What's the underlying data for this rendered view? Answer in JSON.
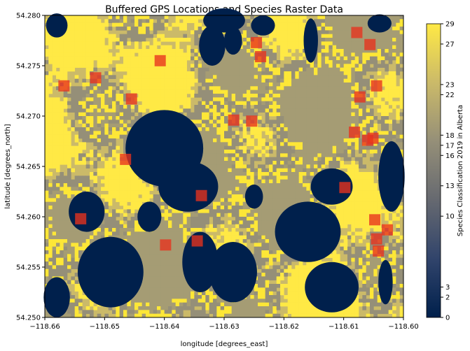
{
  "chart_data": {
    "type": "heatmap",
    "title": "Buffered GPS Locations and Species Raster Data",
    "xlabel": "longitude [degrees_east]",
    "ylabel": "latitude [degrees_north]",
    "xlim": [
      -118.66,
      -118.6
    ],
    "ylim": [
      54.25,
      54.28
    ],
    "x_ticks": [
      -118.66,
      -118.65,
      -118.64,
      -118.63,
      -118.62,
      -118.61,
      -118.6
    ],
    "x_tick_labels": [
      "−118.66",
      "−118.65",
      "−118.64",
      "−118.63",
      "−118.62",
      "−118.61",
      "−118.60"
    ],
    "y_ticks": [
      54.25,
      54.255,
      54.26,
      54.265,
      54.27,
      54.275,
      54.28
    ],
    "y_tick_labels": [
      "54.250",
      "54.255",
      "54.260",
      "54.265",
      "54.270",
      "54.275",
      "54.280"
    ],
    "colorbar": {
      "label": "Species Classification 2019 in Alberta",
      "range": [
        0,
        29
      ],
      "ticks": [
        0,
        2,
        3,
        10,
        13,
        16,
        17,
        18,
        22,
        23,
        27,
        29
      ],
      "colormap": "cividis",
      "colors": [
        "#00204c",
        "#31446b",
        "#666970",
        "#958f78",
        "#cbba69",
        "#ffe945"
      ]
    },
    "gps_buffer_color": "#e8321e",
    "gps_points": [
      {
        "lon": -118.6568,
        "lat": 54.273
      },
      {
        "lon": -118.6515,
        "lat": 54.2738
      },
      {
        "lon": -118.6455,
        "lat": 54.2717
      },
      {
        "lon": -118.6465,
        "lat": 54.2657
      },
      {
        "lon": -118.6407,
        "lat": 54.2755
      },
      {
        "lon": -118.654,
        "lat": 54.2598
      },
      {
        "lon": -118.6398,
        "lat": 54.2572
      },
      {
        "lon": -118.6345,
        "lat": 54.2576
      },
      {
        "lon": -118.6338,
        "lat": 54.2621
      },
      {
        "lon": -118.6284,
        "lat": 54.2696
      },
      {
        "lon": -118.6254,
        "lat": 54.2695
      },
      {
        "lon": -118.6246,
        "lat": 54.2773
      },
      {
        "lon": -118.6239,
        "lat": 54.2759
      },
      {
        "lon": -118.6098,
        "lat": 54.2629
      },
      {
        "lon": -118.6082,
        "lat": 54.2684
      },
      {
        "lon": -118.6078,
        "lat": 54.2783
      },
      {
        "lon": -118.6073,
        "lat": 54.2719
      },
      {
        "lon": -118.6056,
        "lat": 54.2771
      },
      {
        "lon": -118.606,
        "lat": 54.2676
      },
      {
        "lon": -118.6051,
        "lat": 54.2678
      },
      {
        "lon": -118.6045,
        "lat": 54.273
      },
      {
        "lon": -118.6048,
        "lat": 54.2597
      },
      {
        "lon": -118.6045,
        "lat": 54.2578
      },
      {
        "lon": -118.6042,
        "lat": 54.2566
      },
      {
        "lon": -118.6027,
        "lat": 54.2587
      }
    ],
    "water_patches": [
      {
        "cx": -118.63,
        "cy": 54.2795,
        "rx": 0.0035,
        "ry": 0.0012
      },
      {
        "cx": -118.6235,
        "cy": 54.279,
        "rx": 0.002,
        "ry": 0.001
      },
      {
        "cx": -118.604,
        "cy": 54.2792,
        "rx": 0.002,
        "ry": 0.0009
      },
      {
        "cx": -118.632,
        "cy": 54.277,
        "rx": 0.0022,
        "ry": 0.002
      },
      {
        "cx": -118.6285,
        "cy": 54.2775,
        "rx": 0.0015,
        "ry": 0.0014
      },
      {
        "cx": -118.64,
        "cy": 54.2668,
        "rx": 0.0065,
        "ry": 0.0038
      },
      {
        "cx": -118.636,
        "cy": 54.263,
        "rx": 0.005,
        "ry": 0.0025
      },
      {
        "cx": -118.625,
        "cy": 54.262,
        "rx": 0.0015,
        "ry": 0.0012
      },
      {
        "cx": -118.634,
        "cy": 54.2555,
        "rx": 0.003,
        "ry": 0.003
      },
      {
        "cx": -118.6285,
        "cy": 54.2545,
        "rx": 0.004,
        "ry": 0.003
      },
      {
        "cx": -118.6425,
        "cy": 54.26,
        "rx": 0.002,
        "ry": 0.0015
      },
      {
        "cx": -118.649,
        "cy": 54.2545,
        "rx": 0.0055,
        "ry": 0.0035
      },
      {
        "cx": -118.653,
        "cy": 54.2605,
        "rx": 0.003,
        "ry": 0.002
      },
      {
        "cx": -118.658,
        "cy": 54.252,
        "rx": 0.0022,
        "ry": 0.002
      },
      {
        "cx": -118.658,
        "cy": 54.279,
        "rx": 0.0018,
        "ry": 0.0012
      },
      {
        "cx": -118.616,
        "cy": 54.2585,
        "rx": 0.0055,
        "ry": 0.003
      },
      {
        "cx": -118.612,
        "cy": 54.263,
        "rx": 0.0035,
        "ry": 0.0018
      },
      {
        "cx": -118.612,
        "cy": 54.253,
        "rx": 0.0045,
        "ry": 0.0025
      },
      {
        "cx": -118.602,
        "cy": 54.264,
        "rx": 0.0022,
        "ry": 0.0035
      },
      {
        "cx": -118.603,
        "cy": 54.2535,
        "rx": 0.0012,
        "ry": 0.0022
      },
      {
        "cx": -118.6155,
        "cy": 54.2775,
        "rx": 0.0012,
        "ry": 0.0022
      }
    ]
  }
}
